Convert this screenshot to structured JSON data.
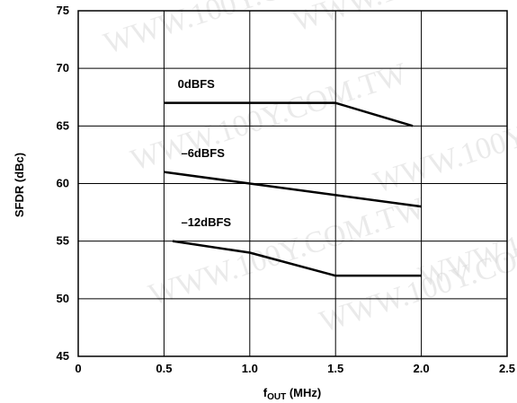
{
  "watermark": "WWW.100Y.COM.TW",
  "chart_data": {
    "type": "line",
    "xlabel": "f",
    "xlabel_sub": "OUT",
    "xlabel_unit": " (MHz)",
    "ylabel": "SFDR (dBc)",
    "xlim": [
      0,
      2.5
    ],
    "ylim": [
      45,
      75
    ],
    "x_ticks": [
      0,
      0.5,
      1.0,
      1.5,
      2.0,
      2.5
    ],
    "x_tick_labels": [
      "0",
      "0.5",
      "1.0",
      "1.5",
      "2.0",
      "2.5"
    ],
    "y_ticks": [
      45,
      50,
      55,
      60,
      65,
      70,
      75
    ],
    "y_tick_labels": [
      "45",
      "50",
      "55",
      "60",
      "65",
      "70",
      "75"
    ],
    "grid": true,
    "legend": "none",
    "series": [
      {
        "name": "0dBFS",
        "x": [
          0.5,
          1.5,
          1.95
        ],
        "y": [
          67,
          67,
          65
        ],
        "label_at": [
          0.58,
          68.3
        ]
      },
      {
        "name": "–6dBFS",
        "x": [
          0.5,
          1.0,
          2.0
        ],
        "y": [
          61,
          60,
          58
        ],
        "label_at": [
          0.6,
          62.3
        ]
      },
      {
        "name": "–12dBFS",
        "x": [
          0.55,
          1.0,
          1.5,
          2.0
        ],
        "y": [
          55,
          54,
          52,
          52
        ],
        "label_at": [
          0.6,
          56.3
        ]
      }
    ],
    "line_color": "#000000",
    "grid_color": "#000000"
  }
}
